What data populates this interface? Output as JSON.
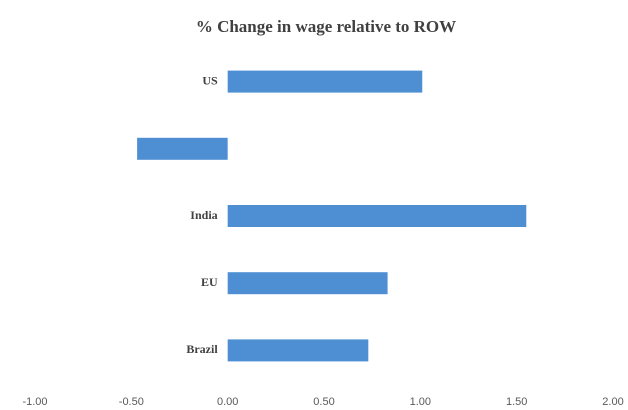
{
  "chart_data": {
    "type": "hbar",
    "title": "% Change in wage relative to ROW",
    "categories": [
      "US",
      null,
      "India",
      "EU",
      "Brazil"
    ],
    "values": [
      1.01,
      -0.47,
      1.55,
      0.83,
      0.73
    ],
    "color": "#4e8fd3",
    "xlim": [
      -1,
      2
    ],
    "xticks": [
      {
        "value": -1,
        "label": "-1.00"
      },
      {
        "value": -0.5,
        "label": "-0.50"
      },
      {
        "value": 0,
        "label": "0.00"
      },
      {
        "value": 0.5,
        "label": "0.50"
      },
      {
        "value": 1,
        "label": "1.00"
      },
      {
        "value": 1.5,
        "label": "1.50"
      },
      {
        "value": 2,
        "label": "2.00"
      }
    ],
    "grid": false
  }
}
